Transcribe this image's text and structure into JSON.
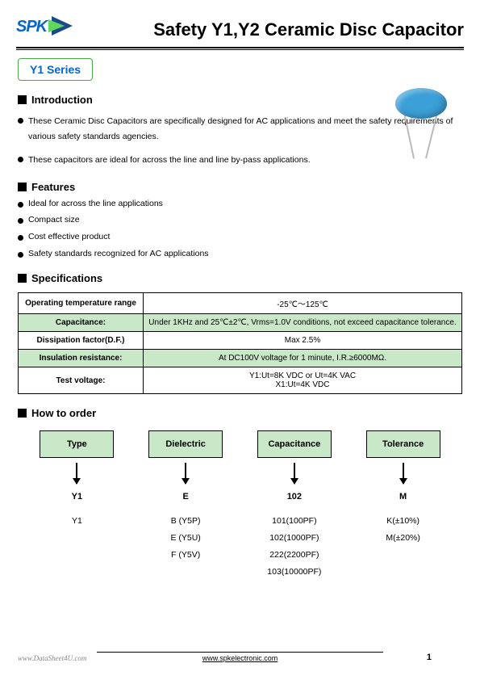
{
  "logo_text": "SPK",
  "page_title": "Safety Y1,Y2 Ceramic Disc Capacitor",
  "series_label": "Y1 Series",
  "sections": {
    "introduction": {
      "heading": "Introduction",
      "bullets": [
        "These Ceramic Disc Capacitors are specifically designed for AC applications and meet the safety requirements of various safety standards agencies.",
        "These capacitors are ideal for across the line and line by-pass applications."
      ]
    },
    "features": {
      "heading": "Features",
      "bullets": [
        "Ideal for across the line applications",
        "Compact size",
        "Cost effective product",
        "Safety standards recognized for AC applications"
      ]
    },
    "specifications": {
      "heading": "Specifications",
      "rows": [
        {
          "label": "Operating temperature range",
          "value": "-25℃～125℃",
          "highlight": false
        },
        {
          "label": "Capacitance:",
          "value": "Under 1KHz and 25℃±2℃, Vrms=1.0V conditions, not exceed capacitance tolerance.",
          "highlight": true
        },
        {
          "label": "Dissipation factor(D.F.)",
          "value": "Max 2.5%",
          "highlight": false
        },
        {
          "label": "Insulation resistance:",
          "value": "At DC100V voltage for 1 minute, I.R.≥6000MΩ.",
          "highlight": true
        },
        {
          "label": "Test voltage:",
          "value": "Y1:Ut=8K VDC or Ut=4K VAC\nX1:Ut=4K VDC",
          "highlight": false
        }
      ]
    },
    "how_to_order": {
      "heading": "How to order",
      "columns": [
        {
          "header": "Type",
          "example": "Y1",
          "options": [
            "Y1"
          ]
        },
        {
          "header": "Dielectric",
          "example": "E",
          "options": [
            "B (Y5P)",
            "E (Y5U)",
            "F (Y5V)"
          ]
        },
        {
          "header": "Capacitance",
          "example": "102",
          "options": [
            "101(100PF)",
            "102(1000PF)",
            "222(2200PF)",
            "103(10000PF)"
          ]
        },
        {
          "header": "Tolerance",
          "example": "M",
          "options": [
            "K(±10%)",
            "M(±20%)"
          ]
        }
      ]
    }
  },
  "footer": {
    "datasheet_watermark": "www.DataSheet4U.com",
    "url": "www.spkelectronic.com",
    "page_number": "1"
  },
  "colors": {
    "highlight_green": "#c8e8c8",
    "logo_blue": "#0066cc",
    "capacitor_blue": "#3b9fd8"
  }
}
